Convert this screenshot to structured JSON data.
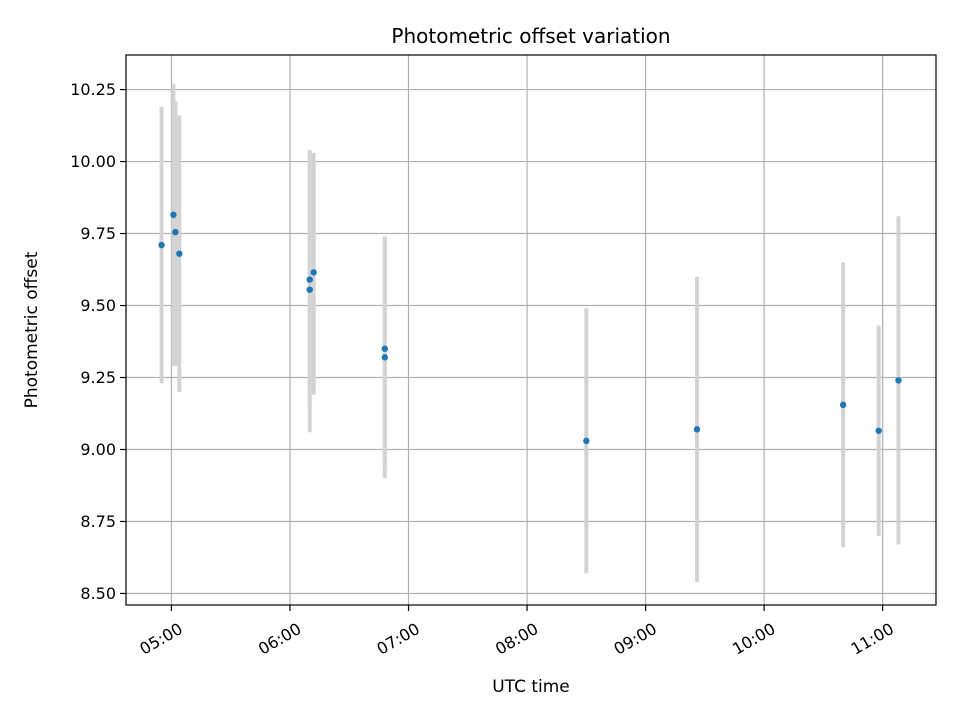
{
  "chart_data": {
    "type": "scatter",
    "title": "Photometric offset variation",
    "xlabel": "UTC time",
    "ylabel": "Photometric offset",
    "x_ticks": [
      "05:00",
      "06:00",
      "07:00",
      "08:00",
      "09:00",
      "10:00",
      "11:00"
    ],
    "y_ticks": [
      "8.50",
      "8.75",
      "9.00",
      "9.25",
      "9.50",
      "9.75",
      "10.00",
      "10.25"
    ],
    "xlim": [
      "04:37",
      "11:27"
    ],
    "ylim": [
      8.46,
      10.37
    ],
    "grid": true,
    "colors": {
      "point": "#1f77b4",
      "errorbar": "#d3d3d3",
      "grid": "#b0b0b0"
    },
    "points": [
      {
        "t": "04:55",
        "y": 9.71,
        "err_low": 9.23,
        "err_high": 10.19
      },
      {
        "t": "05:01",
        "y": 9.815,
        "err_low": 9.29,
        "err_high": 10.27
      },
      {
        "t": "05:02",
        "y": 9.755,
        "err_low": 9.29,
        "err_high": 10.21
      },
      {
        "t": "05:04",
        "y": 9.68,
        "err_low": 9.2,
        "err_high": 10.16
      },
      {
        "t": "06:10",
        "y": 9.555,
        "err_low": 9.06,
        "err_high": 10.04
      },
      {
        "t": "06:10",
        "y": 9.59,
        "err_low": 9.15,
        "err_high": 10.03
      },
      {
        "t": "06:12",
        "y": 9.615,
        "err_low": 9.19,
        "err_high": 10.03
      },
      {
        "t": "06:48",
        "y": 9.35,
        "err_low": 8.95,
        "err_high": 9.74
      },
      {
        "t": "06:48",
        "y": 9.32,
        "err_low": 8.9,
        "err_high": 9.74
      },
      {
        "t": "08:30",
        "y": 9.03,
        "err_low": 8.57,
        "err_high": 9.49
      },
      {
        "t": "09:26",
        "y": 9.07,
        "err_low": 8.54,
        "err_high": 9.6
      },
      {
        "t": "10:40",
        "y": 9.155,
        "err_low": 8.66,
        "err_high": 9.65
      },
      {
        "t": "10:58",
        "y": 9.065,
        "err_low": 8.7,
        "err_high": 9.43
      },
      {
        "t": "11:08",
        "y": 9.24,
        "err_low": 8.67,
        "err_high": 9.81
      }
    ]
  }
}
